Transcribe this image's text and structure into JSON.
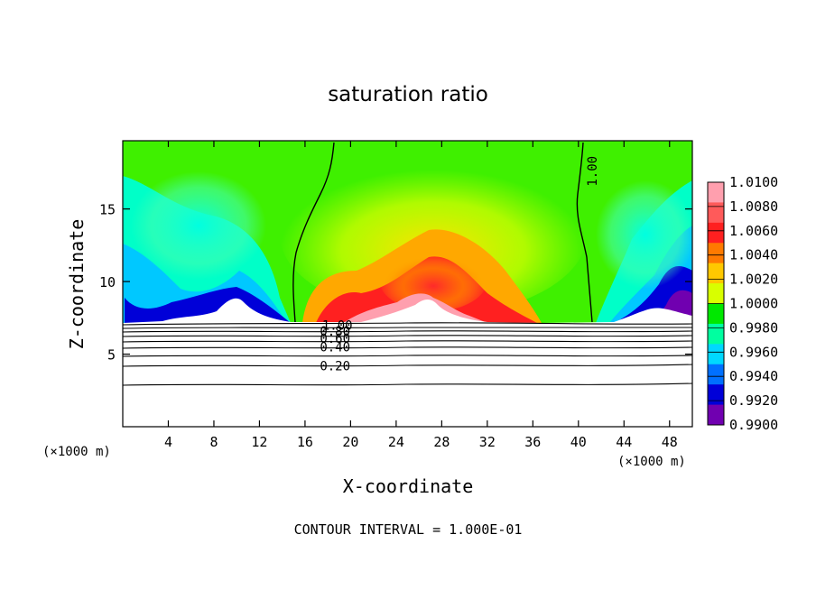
{
  "chart_data": {
    "type": "heatmap",
    "title": "saturation ratio",
    "xlabel": "X-coordinate",
    "ylabel": "Z-coordinate",
    "x_unit": "(×1000 m)",
    "x_unit_right": "(×1000 m)",
    "xlim": [
      0,
      50
    ],
    "ylim": [
      0,
      19.7
    ],
    "xticks": [
      4,
      8,
      12,
      16,
      20,
      24,
      28,
      32,
      36,
      40,
      44,
      48
    ],
    "yticks": [
      5,
      10,
      15
    ],
    "footer": "CONTOUR INTERVAL = 1.000E-01",
    "colorbar": {
      "levels": [
        "1.0100",
        "1.0080",
        "1.0060",
        "1.0040",
        "1.0020",
        "1.0000",
        "0.9980",
        "0.9960",
        "0.9940",
        "0.9920",
        "0.9900"
      ],
      "colors": [
        "#ff9fae",
        "#ff5a5a",
        "#ff2020",
        "#ff7a00",
        "#ffc800",
        "#d8ff00",
        "#00e800",
        "#00ffa0",
        "#00d8ff",
        "#0070ff",
        "#0000d8",
        "#7000b0"
      ]
    },
    "contour_labels": [
      {
        "text": "1.00",
        "x": 17.5,
        "z": 7.0
      },
      {
        "text": "0.80",
        "x": 17.3,
        "z": 6.6
      },
      {
        "text": "0.60",
        "x": 17.3,
        "z": 6.1
      },
      {
        "text": "0.40",
        "x": 17.3,
        "z": 5.5
      },
      {
        "text": "0.20",
        "x": 17.3,
        "z": 4.2
      },
      {
        "text": "1.00",
        "x": 40.8,
        "z": 17.6
      }
    ]
  }
}
